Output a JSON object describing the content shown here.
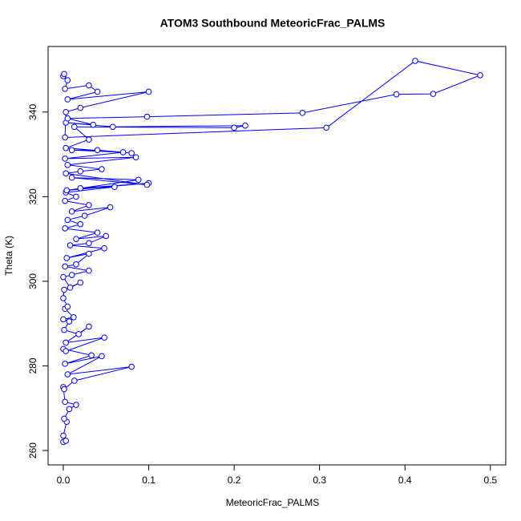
{
  "chart_data": {
    "type": "line",
    "title": "ATOM3 Southbound MeteoricFrac_PALMS",
    "x_label": "MeteoricFrac_PALMS",
    "y_label": "Theta (K)",
    "color": "#0000ff",
    "marker": "open-circle",
    "xlim": [
      -0.0178,
      0.518
    ],
    "ylim": [
      256.6,
      355.5
    ],
    "xticks": [
      {
        "value": 0,
        "label": "0.0"
      },
      0.1,
      0.2,
      0.3,
      0.4,
      0.5
    ],
    "yticks": [
      260,
      280,
      300,
      320,
      340
    ],
    "x": [
      0,
      0.003,
      0,
      0.004,
      0.001,
      0.007,
      0.015,
      0.002,
      0,
      0.001,
      0.013,
      0.08,
      0.005,
      0.045,
      0.002,
      0.033,
      0,
      0.003,
      0.048,
      0.003,
      0.03,
      0.018,
      0.001,
      0.007,
      0,
      0.012,
      0.002,
      0.005,
      0,
      0.001,
      0.02,
      0.008,
      0,
      0.01,
      0.03,
      0.002,
      0.015,
      0.03,
      0.004,
      0.048,
      0.008,
      0.03,
      0.05,
      0.015,
      0.04,
      0.002,
      0.02,
      0.005,
      0.025,
      0.055,
      0.01,
      0.03,
      0.002,
      0.015,
      0.003,
      0.06,
      0.02,
      0.1,
      0.004,
      0.088,
      0.01,
      0.098,
      0.003,
      0.02,
      0.045,
      0.005,
      0.085,
      0.002,
      0.07,
      0.01,
      0.04,
      0.08,
      0.003,
      0.03,
      0.013,
      0.2,
      0.213,
      0.058,
      0.003,
      0.035,
      0.005,
      0.098,
      0.28,
      0.39,
      0.433,
      0.488,
      0.412,
      0.308,
      0.002,
      0.003,
      0.02,
      0.1,
      0.005,
      0.04,
      0.03,
      0.002,
      0.005,
      0,
      0.001
    ],
    "values": [
      262,
      262.3,
      263.5,
      266.8,
      267.5,
      269.8,
      270.8,
      271.5,
      275,
      274.5,
      276.5,
      279.8,
      278,
      282.3,
      280.5,
      282.5,
      284,
      283.5,
      286.7,
      285.5,
      289.3,
      287.5,
      288.5,
      290.5,
      291,
      291.5,
      293.5,
      294,
      296,
      298,
      299.7,
      298.5,
      301,
      301.5,
      302.5,
      303.5,
      304,
      306.5,
      305.5,
      307.8,
      308.5,
      309,
      310.7,
      310,
      311.5,
      312.5,
      313.5,
      314.5,
      315.5,
      317.5,
      316.5,
      318,
      319,
      320,
      321,
      322.3,
      322,
      323.2,
      321.5,
      324,
      324.5,
      322.8,
      325.5,
      326,
      326.5,
      327.5,
      329.3,
      329,
      330.5,
      331,
      331,
      330.3,
      331.5,
      333.5,
      336.5,
      336.3,
      336.8,
      336.5,
      337.5,
      337,
      338.5,
      338.9,
      339.8,
      344.2,
      344.3,
      348.7,
      352.1,
      336.3,
      334,
      340,
      341,
      344.8,
      343,
      344.8,
      346.3,
      345.5,
      347.5,
      348.5,
      349
    ]
  }
}
